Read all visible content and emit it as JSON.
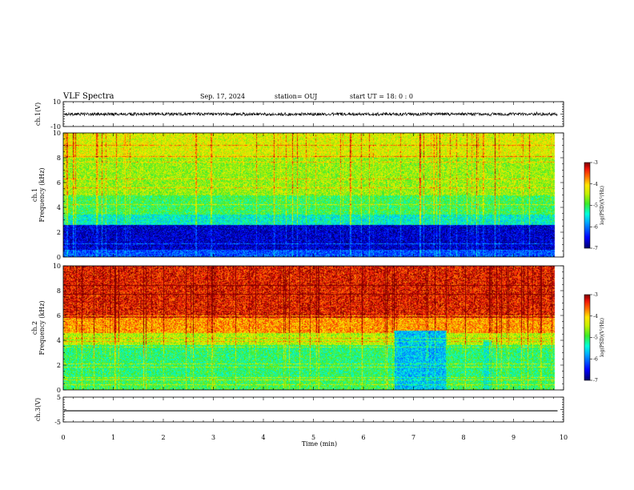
{
  "header": {
    "title": "VLF Spectra",
    "date": "Sep. 17, 2024",
    "station": "station= OUJ",
    "start": "start  UT  =   18: 0  : 0"
  },
  "chart_data": [
    {
      "type": "line",
      "name": "ch1-waveform",
      "ylabel": "ch.1(V)",
      "ylim": [
        -10,
        10
      ],
      "yticks": [
        "10",
        "-10"
      ],
      "xlim": [
        0,
        10
      ],
      "signal": {
        "mean": 0,
        "noise_amplitude": 1.2,
        "spike_amplitude": 3.5
      },
      "color": "#000000"
    },
    {
      "type": "heatmap",
      "name": "ch1-spectrogram",
      "ylabel": "ch.1\nFrequency  (kHz)",
      "ylim": [
        0,
        10
      ],
      "yticks": [
        "0",
        "2",
        "4",
        "6",
        "8",
        "10"
      ],
      "xlim": [
        0,
        10
      ],
      "data_end_min": 9.83,
      "bands": [
        {
          "from_khz": 0.0,
          "to_khz": 0.6,
          "level": -6.2
        },
        {
          "from_khz": 0.6,
          "to_khz": 2.6,
          "level": -6.7
        },
        {
          "from_khz": 2.6,
          "to_khz": 3.4,
          "level": -5.4
        },
        {
          "from_khz": 3.4,
          "to_khz": 5.0,
          "level": -5.0
        },
        {
          "from_khz": 5.0,
          "to_khz": 8.0,
          "level": -4.6
        },
        {
          "from_khz": 8.0,
          "to_khz": 10.0,
          "level": -4.3
        }
      ],
      "colorbar": {
        "label": "log(PSD)(V²/Hz)",
        "ticks": [
          "-3",
          "-4",
          "-5",
          "-6",
          "-7"
        ],
        "range": [
          -7,
          -3
        ]
      }
    },
    {
      "type": "heatmap",
      "name": "ch2-spectrogram",
      "ylabel": "ch.2\nFrequency  (kHz)",
      "ylim": [
        0,
        10
      ],
      "yticks": [
        "0",
        "2",
        "4",
        "6",
        "8",
        "10"
      ],
      "xlim": [
        0,
        10
      ],
      "data_end_min": 9.83,
      "bands": [
        {
          "from_khz": 0.0,
          "to_khz": 1.0,
          "level": -5.0
        },
        {
          "from_khz": 1.0,
          "to_khz": 3.6,
          "level": -5.1
        },
        {
          "from_khz": 3.6,
          "to_khz": 4.6,
          "level": -4.5
        },
        {
          "from_khz": 4.6,
          "to_khz": 6.0,
          "level": -3.8
        },
        {
          "from_khz": 6.0,
          "to_khz": 10.0,
          "level": -3.3
        }
      ],
      "quiet_interval": {
        "from_min": 6.6,
        "to_min": 7.65,
        "to_khz": 4.8,
        "level": -5.7
      },
      "quiet_interval2": {
        "from_min": 8.4,
        "to_min": 8.55,
        "to_khz": 4.0,
        "level": -5.4
      },
      "colorbar": {
        "label": "log(PSD)(V²/Hz)",
        "ticks": [
          "-3",
          "-4",
          "-5",
          "-6",
          "-7"
        ],
        "range": [
          -7,
          -3
        ]
      }
    },
    {
      "type": "line",
      "name": "ch3-waveform",
      "ylabel": "ch.3(V)",
      "ylim": [
        -5,
        5
      ],
      "yticks": [
        "5",
        "-5"
      ],
      "xlim": [
        0,
        10
      ],
      "signal": {
        "mean": -0.5,
        "noise_amplitude": 0
      },
      "color": "#000000"
    }
  ],
  "xaxis": {
    "label": "Time  (min)",
    "ticks": [
      "0",
      "1",
      "2",
      "3",
      "4",
      "5",
      "6",
      "7",
      "8",
      "9",
      "10"
    ]
  }
}
